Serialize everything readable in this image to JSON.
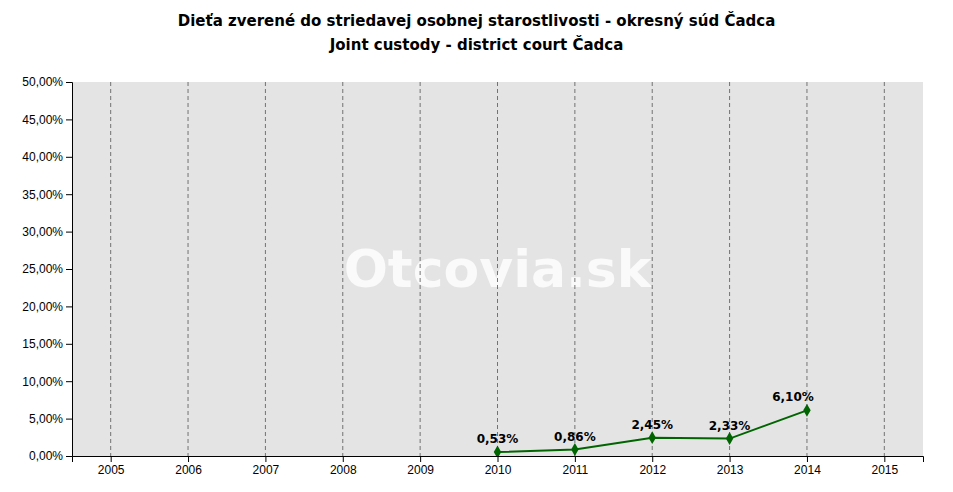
{
  "chart_data": {
    "type": "line",
    "title": "Dieťa zverené do striedavej osobnej starostlivosti - okresný súd Čadca",
    "subtitle": "Joint custody - district court Čadca",
    "annotations": [
      "Otcovia.sk"
    ],
    "x": [
      2010,
      2011,
      2012,
      2013,
      2014
    ],
    "values": [
      0.0053,
      0.0086,
      0.0245,
      0.0233,
      0.061
    ],
    "value_labels": [
      "0,53%",
      "0,86%",
      "2,45%",
      "2,33%",
      "6,10%"
    ],
    "data_labels": true,
    "color": "#006400",
    "marker": "diamond",
    "xlim": [
      2004.5,
      2015.5
    ],
    "xticks": [
      2005,
      2006,
      2007,
      2008,
      2009,
      2010,
      2011,
      2012,
      2013,
      2014,
      2015
    ],
    "ylim": [
      0.0,
      0.5
    ],
    "yticks": [
      {
        "value": 0.0,
        "label": "0,00%"
      },
      {
        "value": 0.05,
        "label": "5,00%"
      },
      {
        "value": 0.1,
        "label": "10,00%"
      },
      {
        "value": 0.15,
        "label": "15,00%"
      },
      {
        "value": 0.2,
        "label": "20,00%"
      },
      {
        "value": 0.25,
        "label": "25,00%"
      },
      {
        "value": 0.3,
        "label": "30,00%"
      },
      {
        "value": 0.35,
        "label": "35,00%"
      },
      {
        "value": 0.4,
        "label": "40,00%"
      },
      {
        "value": 0.45,
        "label": "45,00%"
      },
      {
        "value": 0.5,
        "label": "50,00%"
      }
    ],
    "grid": "x"
  }
}
